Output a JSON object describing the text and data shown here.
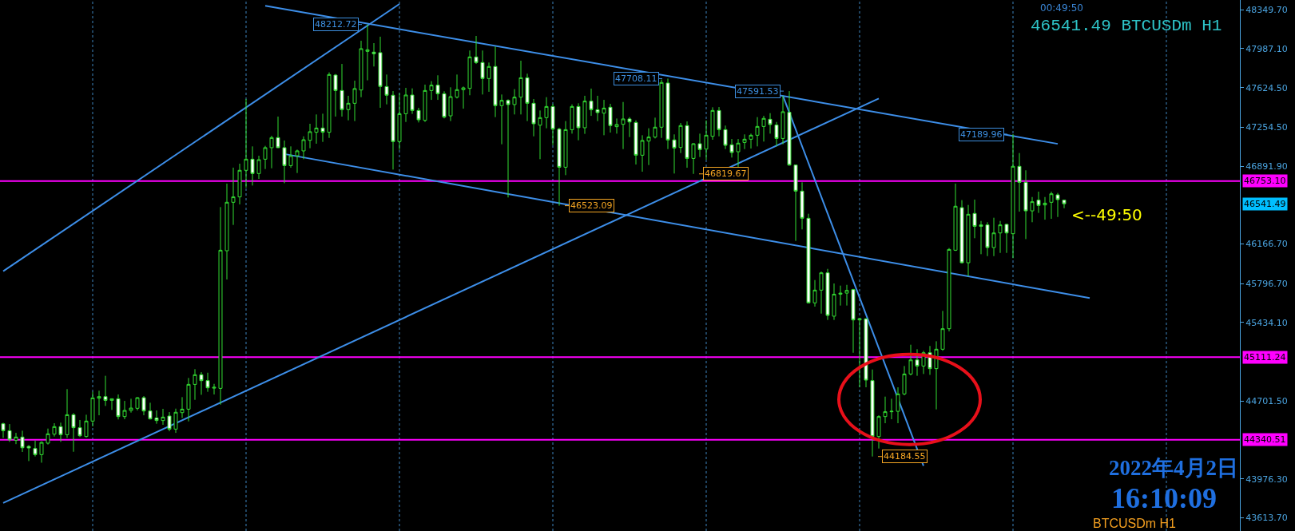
{
  "chart_data": {
    "type": "candlestick",
    "categories": [
      null,
      null,
      null,
      null,
      null,
      null,
      null,
      null,
      null,
      null,
      null,
      null,
      null,
      null,
      null,
      null,
      null,
      null,
      null,
      null,
      null,
      null,
      null,
      null,
      null,
      null,
      null,
      null,
      null,
      null,
      null,
      null,
      null,
      null,
      null,
      null,
      null,
      null,
      null,
      null,
      null,
      null,
      null,
      null,
      null,
      null,
      null,
      null,
      null,
      null,
      null,
      null,
      null,
      null,
      null,
      null,
      null,
      null,
      null,
      null,
      null,
      null,
      null,
      null,
      null,
      null,
      null,
      null,
      null,
      null,
      null,
      null,
      null,
      null,
      null,
      null,
      null,
      null,
      null,
      null,
      null,
      null,
      null,
      null,
      null,
      null,
      null,
      null,
      null,
      null,
      null,
      null,
      null,
      null,
      null,
      null,
      null,
      null,
      null,
      null,
      null,
      null,
      null,
      null,
      null,
      null,
      null,
      null,
      null,
      null,
      null,
      null,
      null,
      null,
      null,
      null,
      null,
      null,
      null,
      null,
      null,
      null,
      null,
      null,
      null,
      null,
      null,
      null,
      null,
      null,
      null,
      null,
      null,
      null,
      null,
      null,
      null,
      null,
      null,
      null,
      null,
      null,
      null,
      null,
      null,
      null,
      null,
      null,
      null,
      null,
      null,
      null,
      null,
      null,
      null,
      null,
      null,
      null,
      null,
      null,
      null,
      null,
      null,
      null,
      null,
      null,
      null,
      null,
      null,
      null,
      null,
      null,
      null,
      null,
      null,
      null,
      null,
      null,
      null,
      null,
      null,
      null,
      null,
      null,
      null,
      null,
      null,
      null,
      null,
      null,
      null,
      null,
      null,
      null
    ],
    "ohlc": [
      [
        44490,
        44500,
        44358,
        44425
      ],
      [
        44425,
        44487,
        44321,
        44341
      ],
      [
        44336,
        44405,
        44300,
        44366
      ],
      [
        44366,
        44425,
        44227,
        44266
      ],
      [
        44279,
        44291,
        44142,
        44264
      ],
      [
        44259,
        44333,
        44185,
        44202
      ],
      [
        44202,
        44326,
        44127,
        44316
      ],
      [
        44309,
        44445,
        44296,
        44396
      ],
      [
        44393,
        44495,
        44371,
        44463
      ],
      [
        44463,
        44500,
        44321,
        44388
      ],
      [
        44388,
        44813,
        44358,
        44574
      ],
      [
        44574,
        44589,
        44229,
        44453
      ],
      [
        44453,
        44525,
        44366,
        44378
      ],
      [
        44371,
        44574,
        44361,
        44515
      ],
      [
        44515,
        44788,
        44465,
        44731
      ],
      [
        44728,
        44798,
        44569,
        44743
      ],
      [
        44743,
        44937,
        44656,
        44708
      ],
      [
        44708,
        44723,
        44619,
        44723
      ],
      [
        44723,
        44763,
        44530,
        44557
      ],
      [
        44557,
        44703,
        44532,
        44614
      ],
      [
        44614,
        44723,
        44594,
        44636
      ],
      [
        44634,
        44738,
        44614,
        44733
      ],
      [
        44733,
        44748,
        44569,
        44609
      ],
      [
        44609,
        44686,
        44530,
        44535
      ],
      [
        44544,
        44614,
        44490,
        44520
      ],
      [
        44520,
        44629,
        44480,
        44552
      ],
      [
        44562,
        44599,
        44420,
        44440
      ],
      [
        44440,
        44631,
        44405,
        44597
      ],
      [
        44594,
        44738,
        44544,
        44626
      ],
      [
        44626,
        44917,
        44512,
        44857
      ],
      [
        44857,
        44999,
        44713,
        44947
      ],
      [
        44947,
        44971,
        44760,
        44892
      ],
      [
        44892,
        44966,
        44788,
        44825
      ],
      [
        44822,
        44862,
        44763,
        44830
      ],
      [
        44820,
        46510,
        44668,
        46108
      ],
      [
        46103,
        46729,
        45835,
        46555
      ],
      [
        46555,
        46878,
        46344,
        46605
      ],
      [
        46605,
        46915,
        46535,
        46853
      ],
      [
        46853,
        47518,
        46691,
        46957
      ],
      [
        46957,
        47076,
        46711,
        46823
      ],
      [
        46823,
        46989,
        46773,
        46952
      ],
      [
        46957,
        47081,
        46865,
        47064
      ],
      [
        47064,
        47175,
        46872,
        47158
      ],
      [
        47158,
        47354,
        47061,
        47064
      ],
      [
        47064,
        47131,
        46733,
        46897
      ],
      [
        46897,
        47076,
        46877,
        46989
      ],
      [
        46989,
        47046,
        46828,
        47034
      ],
      [
        47034,
        47170,
        46957,
        47138
      ],
      [
        47133,
        47287,
        47059,
        47213
      ],
      [
        47208,
        47374,
        47101,
        47247
      ],
      [
        47247,
        47381,
        47118,
        47208
      ],
      [
        47208,
        47766,
        47155,
        47746
      ],
      [
        47741,
        47751,
        47354,
        47597
      ],
      [
        47597,
        47845,
        47354,
        47419
      ],
      [
        47419,
        47548,
        47319,
        47478
      ],
      [
        47478,
        47689,
        47312,
        47615
      ],
      [
        47602,
        48061,
        47535,
        47987
      ],
      [
        47962,
        48212.72,
        47692,
        47977
      ],
      [
        47955,
        48039,
        47821,
        47940
      ],
      [
        47950,
        48099,
        47436,
        47635
      ],
      [
        47634,
        47746,
        47468,
        47553
      ],
      [
        47553,
        47592,
        46860,
        47121
      ],
      [
        47121,
        47572,
        47044,
        47381
      ],
      [
        47381,
        47622,
        47304,
        47555
      ],
      [
        47555,
        47617,
        47379,
        47411
      ],
      [
        47411,
        47436,
        47299,
        47324
      ],
      [
        47319,
        47652,
        47304,
        47597
      ],
      [
        47597,
        47684,
        47510,
        47647
      ],
      [
        47647,
        47739,
        47510,
        47567
      ],
      [
        47567,
        47590,
        47337,
        47349
      ],
      [
        47361,
        47627,
        47312,
        47540
      ],
      [
        47535,
        47746,
        47523,
        47605
      ],
      [
        47605,
        47634,
        47428,
        47622
      ],
      [
        47617,
        47970,
        47553,
        47910
      ],
      [
        47910,
        48106,
        47845,
        47858
      ],
      [
        47858,
        47970,
        47560,
        47709
      ],
      [
        47709,
        47858,
        47585,
        47821
      ],
      [
        47821,
        48007,
        47349,
        47456
      ],
      [
        47456,
        47560,
        47096,
        47505
      ],
      [
        47505,
        47515,
        46600,
        47466
      ],
      [
        47466,
        47610,
        47374,
        47535
      ],
      [
        47535,
        47875,
        47374,
        47716
      ],
      [
        47716,
        47754,
        47312,
        47478
      ],
      [
        47478,
        47518,
        47170,
        47287
      ],
      [
        47274,
        47411,
        46957,
        47344
      ],
      [
        47344,
        47535,
        47245,
        47448
      ],
      [
        47448,
        47473,
        47088,
        47237
      ],
      [
        47237,
        47250,
        46523.09,
        46882
      ],
      [
        46882,
        47312,
        46808,
        47232
      ],
      [
        47232,
        47468,
        47195,
        47448
      ],
      [
        47448,
        47478,
        47133,
        47250
      ],
      [
        47250,
        47548,
        47193,
        47498
      ],
      [
        47498,
        47615,
        47361,
        47418
      ],
      [
        47418,
        47548,
        47312,
        47391
      ],
      [
        47386,
        47510,
        47180,
        47433
      ],
      [
        47441,
        47473,
        47205,
        47270
      ],
      [
        47260,
        47336,
        47195,
        47280
      ],
      [
        47282,
        47490,
        47051,
        47332
      ],
      [
        47332,
        47349,
        47163,
        47304
      ],
      [
        47299,
        47319,
        46907,
        46994
      ],
      [
        46994,
        47180,
        46840,
        47131
      ],
      [
        47126,
        47245,
        46902,
        47163
      ],
      [
        47163,
        47344,
        47150,
        47255
      ],
      [
        47255,
        47700,
        47155,
        47672
      ],
      [
        47667,
        47708.11,
        47051,
        47136
      ],
      [
        47136,
        47188,
        46823,
        47061
      ],
      [
        47066,
        47294,
        47014,
        47270
      ],
      [
        47270,
        47309,
        46877,
        46964
      ],
      [
        46964,
        47105,
        46819.67,
        47101
      ],
      [
        47101,
        47195,
        46977,
        47046
      ],
      [
        47051,
        47319,
        46952,
        47180
      ],
      [
        47170,
        47441,
        47138,
        47411
      ],
      [
        47411,
        47443,
        47170,
        47232
      ],
      [
        47232,
        47270,
        47051,
        47086
      ],
      [
        47091,
        47145,
        46972,
        47019
      ],
      [
        47026,
        47145,
        46877,
        47106
      ],
      [
        47113,
        47188,
        47051,
        47143
      ],
      [
        47143,
        47195,
        47056,
        47180
      ],
      [
        47180,
        47349,
        47076,
        47262
      ],
      [
        47262,
        47361,
        47121,
        47337
      ],
      [
        47329,
        47386,
        47195,
        47280
      ],
      [
        47275,
        47304,
        47076,
        47150
      ],
      [
        47150,
        47548,
        47096,
        47399
      ],
      [
        47394,
        47591.53,
        46897,
        46902
      ],
      [
        46902,
        46907,
        46195,
        46659
      ],
      [
        46659,
        46741,
        46302,
        46406
      ],
      [
        46406,
        46448,
        45612,
        45617
      ],
      [
        45617,
        45830,
        45582,
        45736
      ],
      [
        45736,
        45909,
        45517,
        45897
      ],
      [
        45897,
        45934,
        45458,
        45500
      ],
      [
        45493,
        45798,
        45458,
        45698
      ],
      [
        45698,
        45778,
        45592,
        45708
      ],
      [
        45708,
        45785,
        45592,
        45733
      ],
      [
        45741,
        45748,
        45152,
        45458
      ],
      [
        45458,
        45475,
        44830,
        45470
      ],
      [
        45468,
        45475,
        44830,
        44897
      ],
      [
        44892,
        44996,
        44184.55,
        44371
      ],
      [
        44371,
        44569,
        44259,
        44557
      ],
      [
        44557,
        44743,
        44495,
        44602
      ],
      [
        44602,
        44723,
        44532,
        44606
      ],
      [
        44606,
        44830,
        44495,
        44768
      ],
      [
        44768,
        45028,
        44755,
        44954
      ],
      [
        44954,
        45227,
        44941,
        45085
      ],
      [
        45085,
        45185,
        44937,
        45028
      ],
      [
        45028,
        45170,
        44954,
        45152
      ],
      [
        45152,
        45215,
        44946,
        45004
      ],
      [
        45004,
        45259,
        44624,
        45185
      ],
      [
        45185,
        45542,
        45170,
        45376
      ],
      [
        45376,
        46128,
        45351,
        46115
      ],
      [
        46108,
        46729,
        46101,
        46518
      ],
      [
        46505,
        46575,
        45984,
        45991
      ],
      [
        45991,
        46530,
        45865,
        46443
      ],
      [
        46451,
        46580,
        46220,
        46331
      ],
      [
        46344,
        46381,
        46071,
        46331
      ],
      [
        46344,
        46369,
        46053,
        46133
      ],
      [
        46133,
        46411,
        46053,
        46269
      ],
      [
        46269,
        46381,
        46083,
        46344
      ],
      [
        46349,
        46356,
        46083,
        46269
      ],
      [
        46262,
        47189.96,
        46034,
        46890
      ],
      [
        46890,
        47014,
        46468,
        46741
      ],
      [
        46741,
        46853,
        46212,
        46475
      ],
      [
        46475,
        46604,
        46369,
        46560
      ],
      [
        46575,
        46654,
        46456,
        46525
      ],
      [
        46530,
        46604,
        46393,
        46547
      ],
      [
        46555,
        46654,
        46401,
        46634
      ],
      [
        46624,
        46642,
        46418,
        46580
      ],
      [
        46575,
        46580,
        46500,
        46541.49
      ],
      null,
      null,
      null,
      null,
      null,
      null,
      null,
      null,
      null,
      null,
      null,
      null,
      null,
      null,
      null,
      null,
      null,
      null,
      null,
      null,
      null,
      null,
      null,
      null,
      null,
      null,
      null
    ],
    "value_labels": [
      null,
      null,
      null,
      null,
      null,
      null,
      null,
      null,
      null,
      null,
      null,
      null,
      null,
      null,
      null,
      null,
      null,
      null,
      null,
      null,
      null,
      null,
      null,
      null,
      null,
      null,
      null,
      null,
      null,
      null,
      null,
      null,
      null,
      null,
      null,
      null,
      null,
      null,
      null,
      null,
      null,
      null,
      null,
      null,
      null,
      null,
      null,
      null,
      null,
      null,
      null,
      null,
      null,
      null,
      null,
      null,
      null,
      "48212.72",
      null,
      null,
      null,
      null,
      null,
      null,
      null,
      null,
      null,
      null,
      null,
      null,
      null,
      null,
      null,
      null,
      null,
      null,
      null,
      null,
      null,
      null,
      null,
      null,
      null,
      null,
      null,
      null,
      null,
      "46523.09",
      null,
      null,
      null,
      null,
      null,
      null,
      null,
      null,
      null,
      null,
      null,
      null,
      null,
      null,
      null,
      null,
      "47708.11",
      null,
      null,
      null,
      "46819.67",
      null,
      null,
      null,
      null,
      null,
      null,
      null,
      null,
      null,
      null,
      null,
      null,
      null,
      null,
      "47591.53",
      null,
      null,
      null,
      null,
      null,
      null,
      null,
      null,
      null,
      null,
      null,
      null,
      "44184.55",
      null,
      null,
      null,
      null,
      null,
      null,
      null,
      null,
      null,
      null,
      null,
      null,
      null,
      null,
      null,
      null,
      null,
      null,
      null,
      null,
      null,
      "47189.96",
      null,
      null,
      null,
      null,
      null,
      null,
      null,
      null,
      null,
      null,
      null,
      null,
      null,
      null,
      null,
      null,
      null,
      null,
      null,
      null,
      null,
      null,
      null,
      null,
      null,
      null,
      null,
      null,
      null,
      null,
      null,
      null,
      null,
      null,
      null
    ],
    "color": "#33dd33",
    "series": [
      {
        "type": "line",
        "color": "#3d8ee8",
        "values": [
          45912,
          null,
          null,
          null,
          null,
          null,
          null,
          null,
          null,
          null,
          null,
          null,
          null,
          null,
          null,
          null,
          null,
          null,
          null,
          null,
          null,
          null,
          null,
          null,
          null,
          null,
          null,
          null,
          null,
          null,
          null,
          null,
          null,
          null,
          null,
          null,
          null,
          null,
          null,
          null,
          null,
          null,
          null,
          null,
          null,
          null,
          null,
          null,
          null,
          null,
          null,
          null,
          null,
          null,
          null,
          null,
          null,
          null,
          null,
          null,
          null,
          null,
          48404,
          null,
          null,
          null,
          null,
          null,
          null,
          null,
          null,
          null,
          null,
          null,
          null,
          null,
          null,
          null,
          null,
          null,
          null,
          null,
          null,
          null,
          null,
          null,
          null,
          null,
          null,
          null,
          null,
          null,
          null,
          null,
          null,
          null,
          null,
          null,
          null,
          null,
          null,
          null,
          null,
          null,
          null,
          null,
          null,
          null,
          null,
          null,
          null,
          null,
          null,
          null,
          null,
          null,
          null,
          null,
          null,
          null,
          null,
          null,
          null,
          null,
          null,
          null,
          null,
          null,
          null,
          null,
          null,
          null,
          null,
          null,
          null,
          null,
          null,
          null,
          null,
          null,
          null,
          null,
          null,
          null,
          null,
          null,
          null,
          null,
          null,
          null,
          null,
          null,
          null,
          null,
          null,
          null,
          null,
          null,
          null,
          null,
          null,
          null,
          null,
          null,
          null,
          null,
          null,
          null,
          null,
          null,
          null,
          null,
          null,
          null,
          null,
          null,
          null,
          null,
          null,
          null,
          null,
          null,
          null,
          null,
          null,
          null,
          null,
          null,
          null,
          null,
          null,
          null,
          null,
          null
        ]
      },
      {
        "type": "line",
        "color": "#3d8ee8",
        "values": [
          43751,
          null,
          null,
          null,
          null,
          null,
          null,
          null,
          null,
          null,
          null,
          null,
          null,
          null,
          null,
          null,
          null,
          null,
          null,
          null,
          null,
          null,
          null,
          null,
          null,
          null,
          null,
          null,
          null,
          null,
          null,
          null,
          null,
          null,
          null,
          null,
          null,
          null,
          null,
          null,
          null,
          null,
          null,
          null,
          null,
          null,
          null,
          null,
          null,
          null,
          null,
          null,
          null,
          null,
          null,
          null,
          null,
          null,
          null,
          null,
          null,
          null,
          null,
          null,
          null,
          null,
          null,
          null,
          null,
          null,
          null,
          null,
          null,
          null,
          null,
          null,
          null,
          null,
          null,
          null,
          null,
          null,
          null,
          null,
          null,
          null,
          null,
          null,
          null,
          null,
          null,
          null,
          null,
          null,
          null,
          null,
          null,
          null,
          null,
          null,
          null,
          null,
          null,
          null,
          null,
          null,
          null,
          null,
          null,
          null,
          null,
          null,
          null,
          null,
          null,
          null,
          null,
          null,
          null,
          null,
          null,
          null,
          null,
          null,
          null,
          null,
          null,
          null,
          null,
          null,
          null,
          null,
          null,
          null,
          null,
          null,
          null,
          47523,
          null,
          null,
          null,
          null,
          null,
          null,
          null,
          null,
          null,
          null,
          null,
          null,
          null,
          null,
          null,
          null,
          null,
          null,
          null,
          null,
          null,
          null,
          null,
          null,
          null,
          null,
          null,
          null,
          null,
          null,
          null,
          null,
          null,
          null,
          null,
          null,
          null,
          null,
          null,
          null,
          null,
          null,
          null,
          null,
          null,
          null,
          null,
          null,
          null,
          null,
          null,
          null,
          null,
          null,
          null,
          null
        ]
      },
      {
        "type": "line",
        "color": "#3d8ee8",
        "values": [
          null,
          null,
          null,
          null,
          null,
          null,
          null,
          null,
          null,
          null,
          null,
          null,
          null,
          null,
          null,
          null,
          null,
          null,
          null,
          null,
          null,
          null,
          null,
          null,
          null,
          null,
          null,
          null,
          null,
          null,
          null,
          null,
          null,
          null,
          null,
          null,
          null,
          null,
          null,
          null,
          null,
          48387,
          null,
          null,
          null,
          null,
          null,
          null,
          null,
          null,
          null,
          null,
          null,
          null,
          null,
          null,
          null,
          null,
          null,
          null,
          null,
          null,
          null,
          null,
          null,
          null,
          null,
          null,
          null,
          null,
          null,
          null,
          null,
          null,
          null,
          null,
          null,
          null,
          null,
          null,
          null,
          null,
          null,
          null,
          null,
          null,
          null,
          null,
          null,
          null,
          null,
          null,
          null,
          null,
          null,
          null,
          null,
          null,
          null,
          null,
          null,
          null,
          null,
          null,
          null,
          null,
          null,
          null,
          null,
          null,
          null,
          null,
          null,
          null,
          null,
          null,
          null,
          null,
          null,
          null,
          null,
          null,
          null,
          null,
          null,
          null,
          null,
          null,
          null,
          null,
          null,
          null,
          null,
          null,
          null,
          null,
          null,
          null,
          null,
          null,
          null,
          null,
          null,
          null,
          null,
          null,
          null,
          null,
          null,
          null,
          null,
          null,
          null,
          null,
          null,
          null,
          null,
          null,
          null,
          null,
          null,
          null,
          null,
          null,
          null,
          47100,
          null,
          null,
          null,
          null,
          null,
          null,
          null,
          null,
          null,
          null,
          null,
          null,
          null,
          null,
          null,
          null,
          null,
          null,
          null,
          null,
          null,
          null,
          null,
          null,
          null,
          null,
          null,
          null
        ]
      },
      {
        "type": "line",
        "color": "#3d8ee8",
        "values": [
          null,
          null,
          null,
          null,
          null,
          null,
          null,
          null,
          null,
          null,
          null,
          null,
          null,
          null,
          null,
          null,
          null,
          null,
          null,
          null,
          null,
          null,
          null,
          null,
          null,
          null,
          null,
          null,
          null,
          null,
          null,
          null,
          null,
          null,
          null,
          null,
          null,
          null,
          null,
          null,
          null,
          null,
          null,
          null,
          47005,
          null,
          null,
          null,
          null,
          null,
          null,
          null,
          null,
          null,
          null,
          null,
          null,
          null,
          null,
          null,
          null,
          null,
          null,
          null,
          null,
          null,
          null,
          null,
          null,
          null,
          null,
          null,
          null,
          null,
          null,
          null,
          null,
          null,
          null,
          null,
          null,
          null,
          null,
          null,
          null,
          null,
          null,
          null,
          null,
          null,
          null,
          null,
          null,
          null,
          null,
          null,
          null,
          null,
          null,
          null,
          null,
          null,
          null,
          null,
          null,
          null,
          null,
          null,
          null,
          null,
          null,
          null,
          null,
          null,
          null,
          null,
          null,
          null,
          null,
          null,
          null,
          null,
          null,
          null,
          null,
          null,
          null,
          null,
          null,
          null,
          null,
          null,
          null,
          null,
          null,
          null,
          null,
          null,
          null,
          null,
          null,
          null,
          null,
          null,
          null,
          null,
          null,
          null,
          null,
          null,
          null,
          null,
          null,
          null,
          null,
          null,
          null,
          null,
          null,
          null,
          null,
          null,
          null,
          null,
          null,
          null,
          null,
          null,
          null,
          null,
          45662,
          null,
          null,
          null,
          null,
          null,
          null,
          null,
          null,
          null,
          null,
          null,
          null,
          null,
          null,
          null,
          null,
          null,
          null,
          null,
          null,
          null,
          null,
          null
        ]
      },
      {
        "type": "line",
        "color": "#3d8ee8",
        "values": [
          null,
          null,
          null,
          null,
          null,
          null,
          null,
          null,
          null,
          null,
          null,
          null,
          null,
          null,
          null,
          null,
          null,
          null,
          null,
          null,
          null,
          null,
          null,
          null,
          null,
          null,
          null,
          null,
          null,
          null,
          null,
          null,
          null,
          null,
          null,
          null,
          null,
          null,
          null,
          null,
          null,
          null,
          null,
          null,
          null,
          null,
          null,
          null,
          null,
          null,
          null,
          null,
          null,
          null,
          null,
          null,
          null,
          null,
          null,
          null,
          null,
          null,
          null,
          null,
          null,
          null,
          null,
          null,
          null,
          null,
          null,
          null,
          null,
          null,
          null,
          null,
          null,
          null,
          null,
          null,
          null,
          null,
          null,
          null,
          null,
          null,
          null,
          null,
          null,
          null,
          null,
          null,
          null,
          null,
          null,
          null,
          null,
          null,
          null,
          null,
          null,
          null,
          null,
          null,
          null,
          null,
          null,
          null,
          null,
          null,
          null,
          null,
          null,
          null,
          null,
          null,
          null,
          null,
          null,
          null,
          null,
          null,
          47548,
          null,
          null,
          null,
          null,
          null,
          null,
          null,
          null,
          null,
          null,
          null,
          null,
          null,
          null,
          null,
          null,
          null,
          null,
          null,
          null,
          null,
          44098,
          null,
          null,
          null,
          null,
          null,
          null,
          null,
          null,
          null,
          null,
          null,
          null,
          null,
          null,
          null,
          null,
          null,
          null,
          null,
          null,
          null,
          null,
          null,
          null,
          null,
          null,
          null,
          null,
          null,
          null,
          null,
          null,
          null,
          null,
          null,
          null,
          null,
          null,
          null,
          null,
          null,
          null,
          null,
          null,
          null,
          null,
          null,
          null,
          null
        ]
      }
    ],
    "ylim": [
      43490,
      48441
    ],
    "yticks": [
      {
        "value": 48349.7,
        "label": "48349.70"
      },
      {
        "value": 47987.1,
        "label": "47987.10"
      },
      {
        "value": 47624.5,
        "label": "47624.50"
      },
      {
        "value": 47254.5,
        "label": "47254.50"
      },
      {
        "value": 46891.9,
        "label": "46891.90"
      },
      {
        "value": 46166.7,
        "label": "46166.70"
      },
      {
        "value": 45796.7,
        "label": "45796.70"
      },
      {
        "value": 45434.1,
        "label": "45434.10"
      },
      {
        "value": 44701.5,
        "label": "44701.50"
      },
      {
        "value": 43976.3,
        "label": "43976.30"
      },
      {
        "value": 43613.7,
        "label": "43613.70"
      }
    ],
    "tick_labels": "y",
    "ref_lines": [
      {
        "axis": "y",
        "value": 46753.1,
        "label": "46753.10",
        "color": "#ff00ff",
        "line_style": "solid"
      },
      {
        "axis": "y",
        "value": 45111.24,
        "label": "45111.24",
        "color": "#ff00ff",
        "line_style": "solid"
      },
      {
        "axis": "y",
        "value": 44340.51,
        "label": "44340.51",
        "color": "#ff00ff",
        "line_style": "solid"
      }
    ],
    "annotations": [
      "00:49:50",
      "46541.49 BTCUSDm H1",
      "<--49:50",
      "2022年4月2日",
      "16:10:09",
      "BTCUSDm H1",
      "46541.49"
    ]
  }
}
